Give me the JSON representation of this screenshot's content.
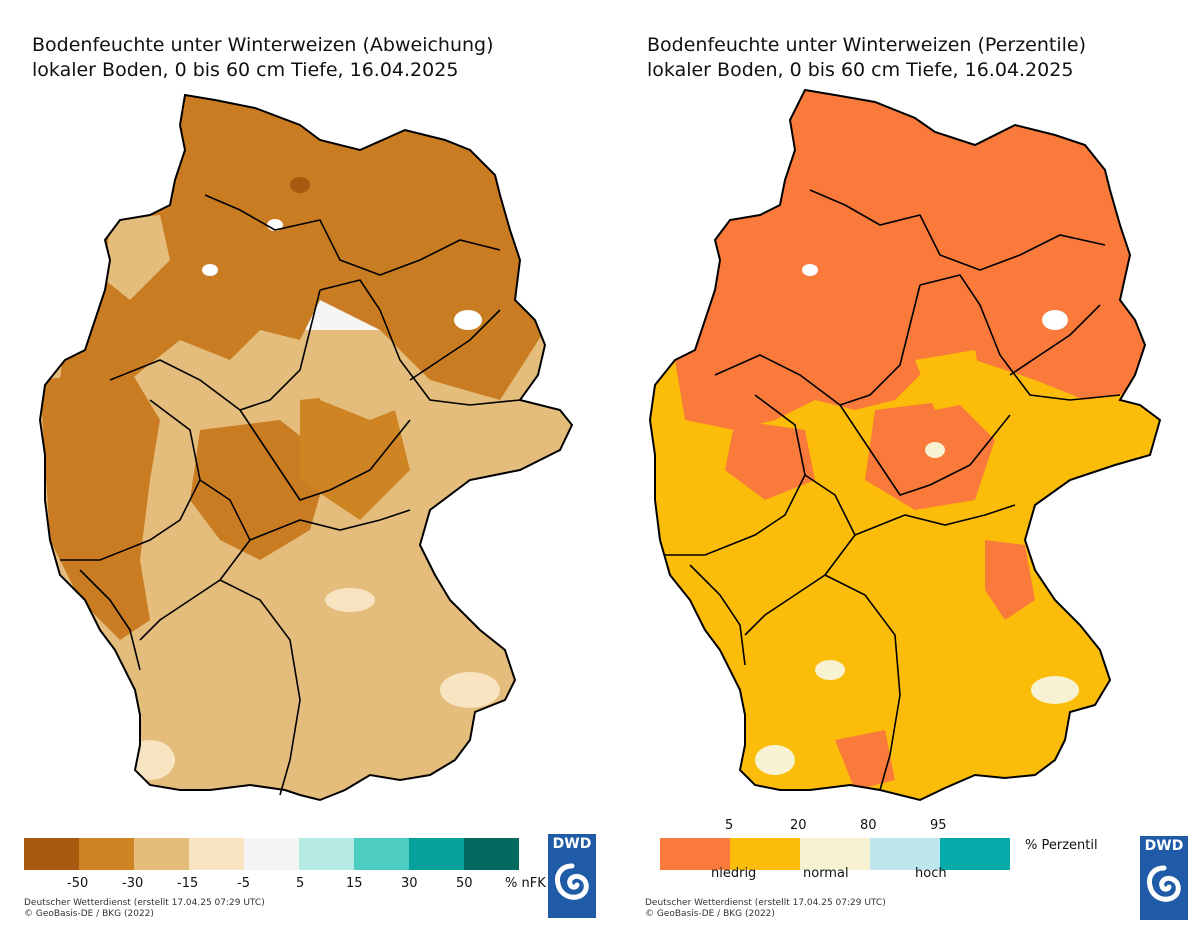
{
  "left": {
    "title_line1": "Bodenfeuchte unter Winterweizen (Abweichung)",
    "title_line2": "lokaler Boden, 0 bis 60 cm Tiefe, 16.04.2025",
    "legend_colors": [
      "#a75a10",
      "#cf8424",
      "#e4bd7c",
      "#f8e4c1",
      "#f5f5f5",
      "#b5ebe3",
      "#4dccc0",
      "#05a19a",
      "#036a5f"
    ],
    "legend_ticks": [
      "-50",
      "-30",
      "-15",
      "-5",
      "5",
      "15",
      "30",
      "50"
    ],
    "unit": "% nFK",
    "credit_line1": "Deutscher Wetterdienst (erstellt 17.04.25 07:29 UTC)",
    "credit_line2": "© GeoBasis-DE / BKG (2022)",
    "logo": "DWD"
  },
  "right": {
    "title_line1": "Bodenfeuchte unter Winterweizen (Perzentile)",
    "title_line2": "lokaler Boden, 0 bis 60 cm Tiefe, 16.04.2025",
    "legend_colors": [
      "#f97a3a",
      "#fbbd0a",
      "#f7f2d2",
      "#bde6ef",
      "#06aaa9"
    ],
    "legend_ticks": [
      "5",
      "20",
      "80",
      "95"
    ],
    "legend_labels": [
      "niedrig",
      "normal",
      "hoch"
    ],
    "unit": "% Perzentil",
    "credit_line1": "Deutscher Wetterdienst (erstellt 17.04.25 07:29 UTC)",
    "credit_line2": "© GeoBasis-DE / BKG (2022)",
    "logo": "DWD"
  }
}
